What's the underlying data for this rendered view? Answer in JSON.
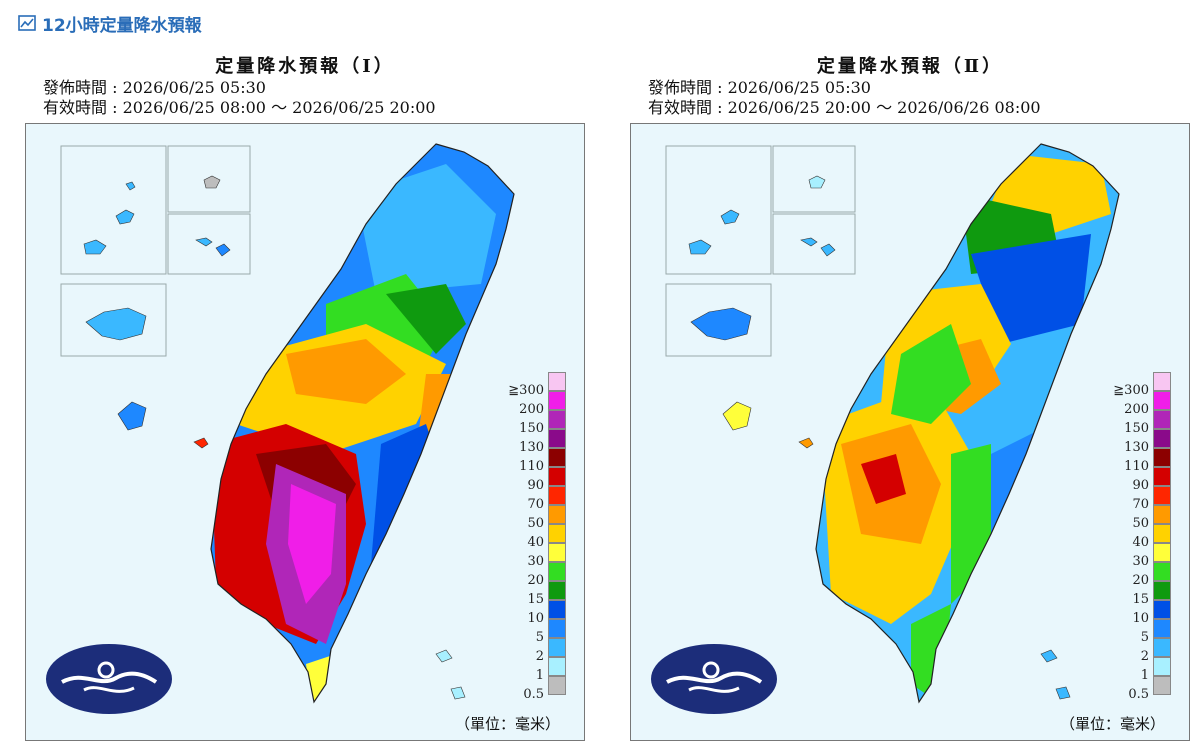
{
  "header": {
    "title": "12小時定量降水預報",
    "icon": "chart-line-icon",
    "color": "#2a6db8"
  },
  "panels": [
    {
      "title": "定量降水預報（Ⅰ）",
      "issue_line": "發佈時間 : 2026/06/25 05:30",
      "valid_line": "有效時間 : 2026/06/25 08:00 ～ 2026/06/25 20:00",
      "unit": "（單位：毫米）"
    },
    {
      "title": "定量降水預報（Ⅱ）",
      "issue_line": "發佈時間 : 2026/06/25 05:30",
      "valid_line": "有效時間 : 2026/06/25 20:00 ～ 2026/06/26 08:00",
      "unit": "（單位：毫米）"
    }
  ],
  "legend": {
    "labels": [
      "≧300",
      "200",
      "150",
      "130",
      "110",
      "90",
      "70",
      "50",
      "40",
      "30",
      "20",
      "15",
      "10",
      "5",
      "2",
      "1",
      "0.5"
    ],
    "colors": [
      "#f8c6f2",
      "#f01ee8",
      "#b026b8",
      "#8a0a8a",
      "#8c0000",
      "#d40000",
      "#ff2600",
      "#ff9a00",
      "#ffd200",
      "#ffff3a",
      "#33dd22",
      "#0f9a0f",
      "#0050e6",
      "#1e88ff",
      "#3ab8ff",
      "#a8f0ff",
      "#bdbdbd"
    ]
  }
}
